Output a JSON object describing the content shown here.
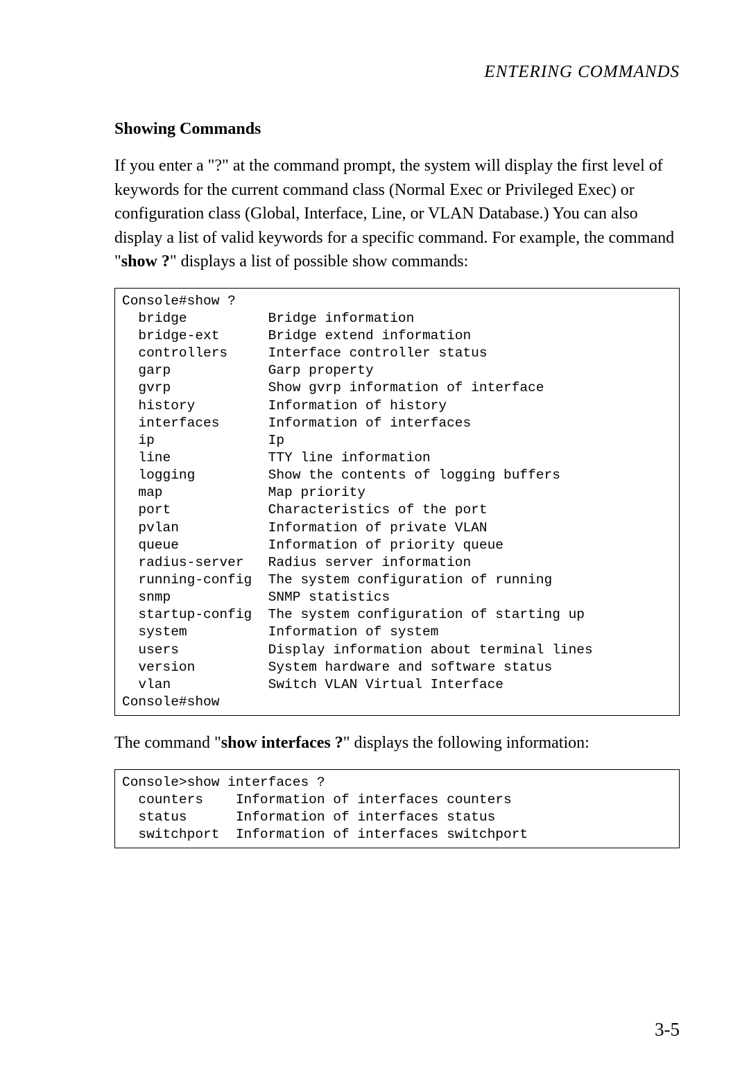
{
  "header": {
    "text": "ENTERING COMMANDS"
  },
  "section": {
    "title": "Showing Commands"
  },
  "intro": {
    "part1": "If you enter a \"?\" at the command prompt, the system will display the first level of keywords for the current command class (Normal Exec or Privileged Exec) or configuration class (Global, Interface, Line, or VLAN Database.) You can also display a list of valid keywords for a specific command. For example, the command \"",
    "bold1": "show ?",
    "part2": "\" displays a list of possible show commands:"
  },
  "terminal1": {
    "content": "Console#show ?\n  bridge          Bridge information\n  bridge-ext      Bridge extend information\n  controllers     Interface controller status\n  garp            Garp property\n  gvrp            Show gvrp information of interface\n  history         Information of history\n  interfaces      Information of interfaces\n  ip              Ip\n  line            TTY line information\n  logging         Show the contents of logging buffers\n  map             Map priority\n  port            Characteristics of the port\n  pvlan           Information of private VLAN\n  queue           Information of priority queue\n  radius-server   Radius server information\n  running-config  The system configuration of running\n  snmp            SNMP statistics\n  startup-config  The system configuration of starting up\n  system          Information of system\n  users           Display information about terminal lines\n  version         System hardware and software status\n  vlan            Switch VLAN Virtual Interface\nConsole#show"
  },
  "between": {
    "part1": "The command \"",
    "bold1": "show interfaces ?",
    "part2": "\" displays the following information:"
  },
  "terminal2": {
    "content": "Console>show interfaces ?\n  counters    Information of interfaces counters\n  status      Information of interfaces status\n  switchport  Information of interfaces switchport"
  },
  "pageNumber": "3-5"
}
